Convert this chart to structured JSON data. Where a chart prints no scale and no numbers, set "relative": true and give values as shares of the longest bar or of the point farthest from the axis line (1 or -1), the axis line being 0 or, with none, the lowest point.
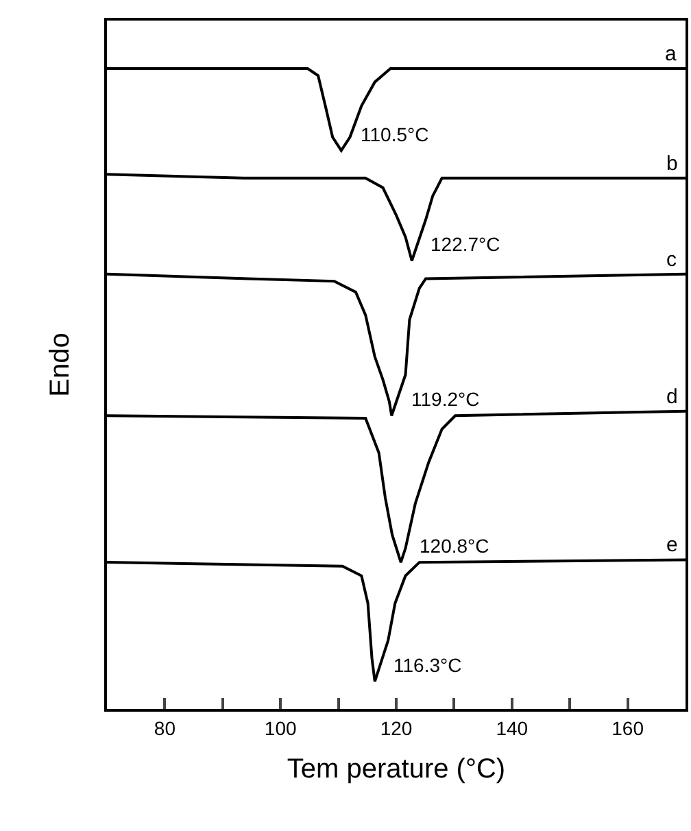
{
  "chart_data": {
    "type": "line",
    "relative": true,
    "xlabel": "Tem perature (°C)",
    "ylabel": "Endo",
    "xlim": [
      70,
      170
    ],
    "xticks": [
      80,
      {
        "value": 90,
        "label": null
      },
      100,
      {
        "value": 110,
        "label": null
      },
      120,
      {
        "value": 130,
        "label": null
      },
      140,
      {
        "value": 150,
        "label": null
      },
      160
    ],
    "legend": false,
    "marker": "none",
    "line_style": "solid",
    "series": [
      {
        "name": "a",
        "color": "#000000",
        "x": [
          70,
          104.7,
          106.5,
          107.9,
          109,
          110.5,
          112,
          114,
          116.3,
          119,
          170
        ],
        "values": [
          1.0,
          1.0,
          0.989,
          0.936,
          0.893,
          0.872,
          0.893,
          0.942,
          0.979,
          1.0,
          1.0
        ]
      },
      {
        "name": "b",
        "color": "#000000",
        "x": [
          70,
          93.7,
          114.7,
          117.7,
          120,
          121.6,
          122.7,
          125.1,
          126.3,
          127.9,
          170
        ],
        "values": [
          0.835,
          0.829,
          0.829,
          0.814,
          0.771,
          0.737,
          0.7,
          0.764,
          0.801,
          0.829,
          0.829
        ]
      },
      {
        "name": "c",
        "color": "#000000",
        "x": [
          70,
          94.4,
          109.3,
          113,
          114.7,
          116.3,
          117.7,
          118.8,
          119.2,
          121.6,
          122.3,
          124,
          125.1,
          170
        ],
        "values": [
          0.679,
          0.672,
          0.668,
          0.651,
          0.615,
          0.55,
          0.514,
          0.48,
          0.458,
          0.522,
          0.608,
          0.657,
          0.672,
          0.679
        ]
      },
      {
        "name": "d",
        "color": "#000000",
        "x": [
          70,
          114.7,
          117,
          118.1,
          119.3,
          120.8,
          121.6,
          123.3,
          125.6,
          127.9,
          130.2,
          170
        ],
        "values": [
          0.458,
          0.454,
          0.4,
          0.33,
          0.272,
          0.229,
          0.251,
          0.321,
          0.385,
          0.437,
          0.458,
          0.465
        ]
      },
      {
        "name": "e",
        "color": "#000000",
        "x": [
          70,
          110.7,
          114,
          115.1,
          115.8,
          116.3,
          118.6,
          119.8,
          121.6,
          124,
          170
        ],
        "values": [
          0.229,
          0.223,
          0.208,
          0.165,
          0.079,
          0.043,
          0.107,
          0.165,
          0.208,
          0.229,
          0.233
        ]
      }
    ],
    "annotations": [
      {
        "text": "110.5°C",
        "x": 110.5,
        "y": 0.872
      },
      {
        "text": "122.7°C",
        "x": 122.7,
        "y": 0.7
      },
      {
        "text": "119.2°C",
        "x": 119.2,
        "y": 0.458
      },
      {
        "text": "120.8°C",
        "x": 120.8,
        "y": 0.229
      },
      {
        "text": "116.3°C",
        "x": 116.3,
        "y": 0.043
      }
    ]
  }
}
